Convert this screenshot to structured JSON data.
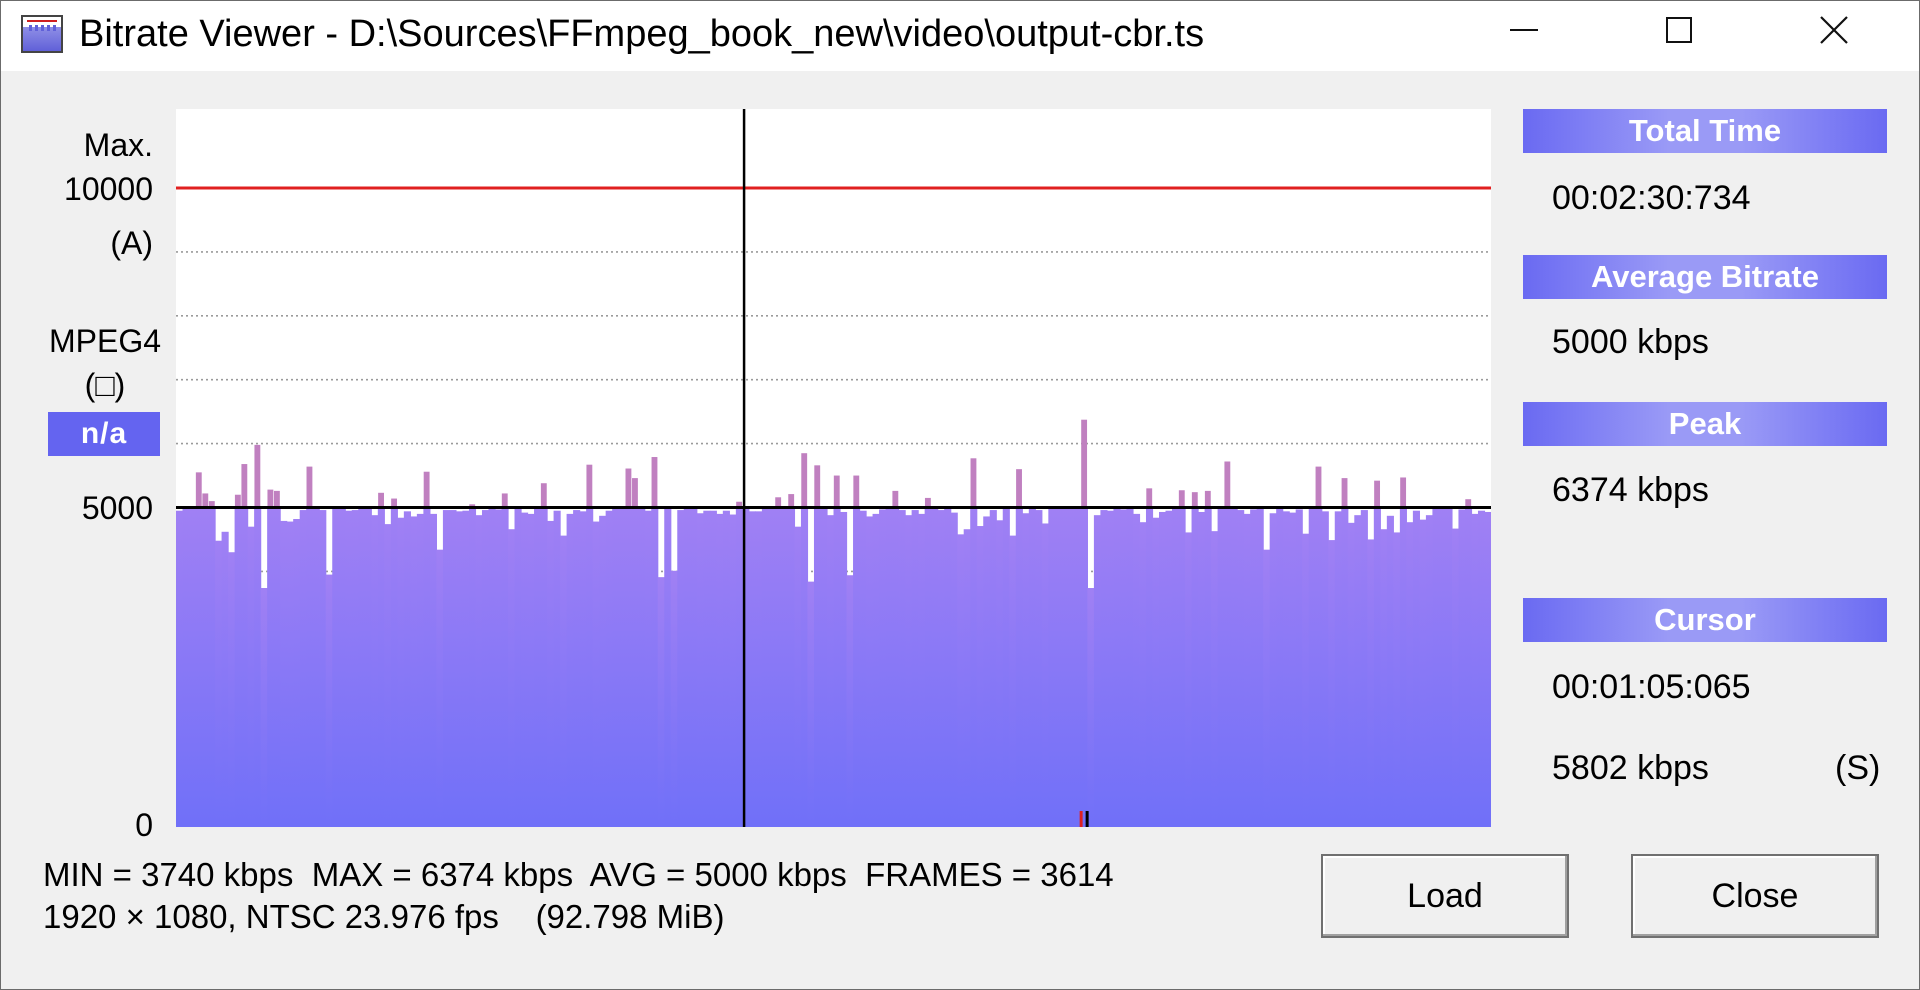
{
  "window": {
    "title": "Bitrate Viewer - D:\\Sources\\FFmpeg_book_new\\video\\output-cbr.ts",
    "controls": {
      "minimize": "—",
      "maximize": "□",
      "close": "✕"
    }
  },
  "left_labels": {
    "max_label": "Max.",
    "max_value": "10000",
    "max_mode": "(A)",
    "codec": "MPEG4",
    "frame_symbol": "(□)",
    "frame_type": "n/a",
    "mid_value": "5000",
    "zero_value": "0"
  },
  "right_panel": {
    "total_time_label": "Total Time",
    "total_time_value": "00:02:30:734",
    "avg_bitrate_label": "Average Bitrate",
    "avg_bitrate_value": "5000 kbps",
    "peak_label": "Peak",
    "peak_value": "6374 kbps",
    "cursor_label": "Cursor",
    "cursor_time": "00:01:05:065",
    "cursor_bitrate": "5802 kbps",
    "cursor_mode": "(S)"
  },
  "stats": {
    "line1": "MIN = 3740 kbps  MAX = 6374 kbps  AVG = 5000 kbps  FRAMES = 3614",
    "line2": "1920 × 1080, NTSC 23.976 fps    (92.798 MiB)"
  },
  "buttons": {
    "load": "Load",
    "close": "Close"
  },
  "colors": {
    "max_line": "#e02020",
    "bar_top": "#a080f4",
    "bar_bottom": "#7070f8",
    "spike_up": "#c080c0",
    "panel_header": "#7a7af0"
  },
  "chart_data": {
    "type": "bar",
    "ylim": [
      0,
      10000
    ],
    "max_line": 10000,
    "average_line": 5000,
    "cursor_fraction": 0.432,
    "grid": true,
    "bar_bitrates_kbps": [
      4950,
      5000,
      4990,
      5550,
      5220,
      5100,
      4480,
      4620,
      4300,
      5200,
      5680,
      4700,
      5980,
      3740,
      5280,
      5260,
      4790,
      4780,
      4820,
      4960,
      5640,
      4990,
      4960,
      3950,
      5000,
      4990,
      4950,
      4960,
      5000,
      5000,
      4880,
      5230,
      4740,
      5140,
      4840,
      4940,
      4860,
      4900,
      5560,
      4900,
      4340,
      4960,
      4960,
      4940,
      4950,
      5050,
      4880,
      4960,
      4990,
      4970,
      5220,
      4660,
      5010,
      4920,
      4900,
      5000,
      5380,
      4790,
      4950,
      4560,
      4900,
      4960,
      4940,
      5670,
      4780,
      4870,
      4950,
      5000,
      5000,
      5610,
      5460,
      5000,
      4950,
      5790,
      3910,
      5000,
      4010,
      4960,
      5000,
      4990,
      4910,
      4950,
      4950,
      4900,
      4950,
      4890,
      5090,
      5020,
      4940,
      4940,
      5000,
      5000,
      5160,
      5000,
      5210,
      4700,
      5850,
      3840,
      5660,
      4990,
      4880,
      5500,
      4930,
      3940,
      5500,
      4950,
      4860,
      4900,
      4970,
      5000,
      5260,
      4960,
      4880,
      4960,
      4900,
      5150,
      4980,
      4960,
      5000,
      4920,
      4580,
      4660,
      5770,
      4710,
      4860,
      4960,
      4800,
      5000,
      4560,
      5600,
      4910,
      5000,
      4960,
      4750,
      5000,
      5000,
      4990,
      4990,
      5000,
      6374,
      3740,
      4880,
      4960,
      4950,
      5000,
      4970,
      5000,
      4900,
      4770,
      5300,
      4840,
      4930,
      4950,
      4990,
      5270,
      4610,
      5240,
      4930,
      5260,
      4630,
      5010,
      5720,
      4980,
      4960,
      4900,
      4970,
      4980,
      4340,
      4910,
      5000,
      4940,
      4920,
      4970,
      4590,
      5000,
      5640,
      4940,
      4490,
      4940,
      5460,
      4760,
      4880,
      4960,
      4500,
      5420,
      4660,
      4870,
      4610,
      5470,
      4770,
      4950,
      4810,
      4880,
      5010,
      5000,
      5000,
      4670,
      4970,
      5130,
      4900,
      4950,
      4930
    ]
  }
}
